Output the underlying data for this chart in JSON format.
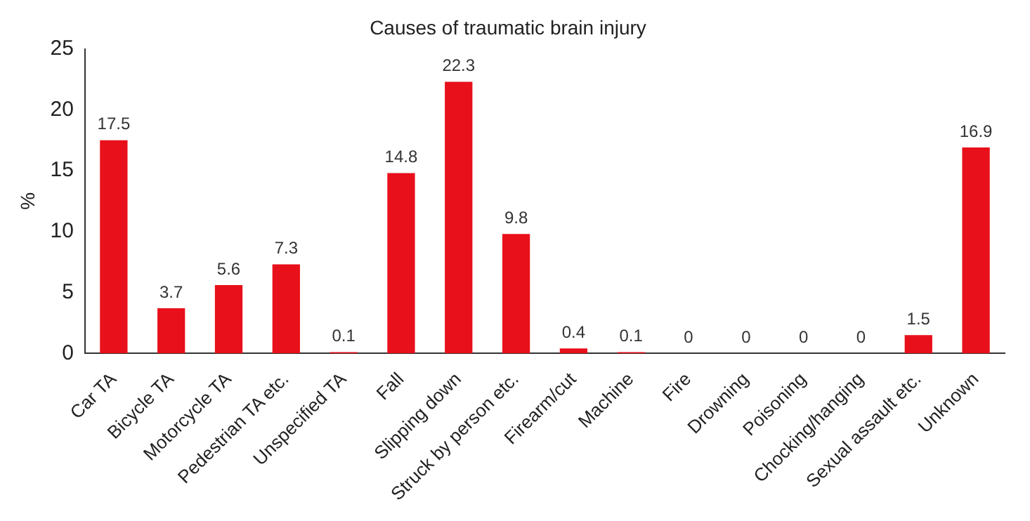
{
  "chart_data": {
    "type": "bar",
    "title": "Causes of traumatic brain injury",
    "ylabel": "%",
    "categories": [
      "Car TA",
      "Bicycle TA",
      "Motorcycle TA",
      "Pedestrian TA etc.",
      "Unspecified TA",
      "Fall",
      "Slipping down",
      "Struck by person etc.",
      "Firearm/cut",
      "Machine",
      "Fire",
      "Drowning",
      "Poisoning",
      "Chocking/hanging",
      "Sexual assault etc.",
      "Unknown"
    ],
    "values": [
      17.5,
      3.7,
      5.6,
      7.3,
      0.1,
      14.8,
      22.3,
      9.8,
      0.4,
      0.1,
      0,
      0,
      0,
      0,
      1.5,
      16.9
    ],
    "color": "#e8101a",
    "ylim": [
      0,
      25
    ],
    "yticks": [
      0,
      5,
      10,
      15,
      20,
      25
    ],
    "grid": false,
    "legend": false,
    "data_labels": true
  }
}
